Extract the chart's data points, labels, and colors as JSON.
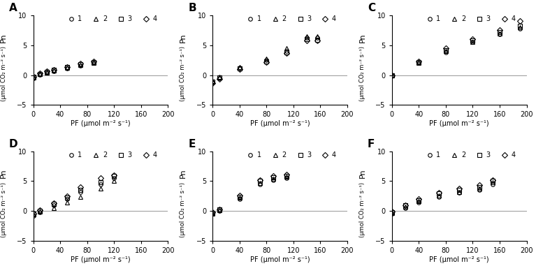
{
  "panels": [
    "A",
    "B",
    "C",
    "D",
    "E",
    "F"
  ],
  "marker_styles": [
    "o",
    "^",
    "s",
    "D"
  ],
  "legend_labels": [
    "1",
    "2",
    "3",
    "4"
  ],
  "marker_size": 4,
  "xlabel": "PF (μmol m⁻² s⁻¹)",
  "ylabel_top": "Pn",
  "ylabel_bottom": "(μmol CO₂ m⁻² s⁻¹)",
  "ylim": [
    -5,
    10
  ],
  "yticks": [
    -5,
    0,
    5,
    10
  ],
  "A": {
    "xlim": [
      0,
      200
    ],
    "xticks": [
      0,
      40,
      80,
      120,
      160,
      200
    ],
    "series": {
      "1": {
        "x": [
          0,
          10,
          20,
          30,
          50,
          70,
          90
        ],
        "y": [
          -0.5,
          0.1,
          0.4,
          0.7,
          1.1,
          1.6,
          2.0
        ]
      },
      "2": {
        "x": [
          0,
          10,
          20,
          30,
          50,
          70,
          90
        ],
        "y": [
          -0.4,
          0.15,
          0.45,
          0.75,
          1.2,
          1.7,
          2.1
        ]
      },
      "3": {
        "x": [
          0,
          10,
          20,
          30,
          50,
          70,
          90
        ],
        "y": [
          -0.3,
          0.2,
          0.55,
          0.85,
          1.35,
          1.85,
          2.2
        ]
      },
      "4": {
        "x": [
          0,
          10,
          20,
          30,
          50,
          70,
          90
        ],
        "y": [
          -0.25,
          0.25,
          0.6,
          0.9,
          1.4,
          1.9,
          2.25
        ]
      }
    }
  },
  "B": {
    "xlim": [
      0,
      200
    ],
    "xticks": [
      0,
      40,
      80,
      120,
      160,
      200
    ],
    "series": {
      "1": {
        "x": [
          0,
          10,
          40,
          80,
          110,
          140,
          155
        ],
        "y": [
          -1.2,
          -0.5,
          1.2,
          2.5,
          4.0,
          6.2,
          6.2
        ]
      },
      "2": {
        "x": [
          0,
          10,
          40,
          80,
          110,
          140,
          155
        ],
        "y": [
          -1.0,
          -0.3,
          1.4,
          2.8,
          4.5,
          6.5,
          6.5
        ]
      },
      "3": {
        "x": [
          0,
          10,
          40,
          80,
          110,
          140,
          155
        ],
        "y": [
          -1.1,
          -0.4,
          1.1,
          2.3,
          3.8,
          6.0,
          5.9
        ]
      },
      "4": {
        "x": [
          0,
          10,
          40,
          80,
          110,
          140,
          155
        ],
        "y": [
          -1.3,
          -0.6,
          1.0,
          2.2,
          3.7,
          5.8,
          5.8
        ]
      }
    }
  },
  "C": {
    "xlim": [
      0,
      200
    ],
    "xticks": [
      0,
      40,
      80,
      120,
      160,
      200
    ],
    "series": {
      "1": {
        "x": [
          0,
          40,
          80,
          120,
          160,
          190
        ],
        "y": [
          0.0,
          2.0,
          3.8,
          5.5,
          6.8,
          7.8
        ]
      },
      "2": {
        "x": [
          0,
          40,
          80,
          120,
          160,
          190
        ],
        "y": [
          0.0,
          2.1,
          4.0,
          5.6,
          6.9,
          8.0
        ]
      },
      "3": {
        "x": [
          0,
          40,
          80,
          120,
          160,
          190
        ],
        "y": [
          0.0,
          2.2,
          4.2,
          5.8,
          7.2,
          8.2
        ]
      },
      "4": {
        "x": [
          0,
          40,
          80,
          120,
          160,
          190
        ],
        "y": [
          0.0,
          2.3,
          4.5,
          6.0,
          7.5,
          9.0
        ]
      }
    }
  },
  "D": {
    "xlim": [
      0,
      200
    ],
    "xticks": [
      0,
      40,
      80,
      120,
      160,
      200
    ],
    "series": {
      "1": {
        "x": [
          0,
          10,
          30,
          50,
          70,
          100,
          120
        ],
        "y": [
          -0.8,
          -0.2,
          1.0,
          2.0,
          3.2,
          4.5,
          5.5
        ]
      },
      "2": {
        "x": [
          0,
          10,
          30,
          50,
          70,
          100,
          120
        ],
        "y": [
          -0.6,
          -0.1,
          0.5,
          1.4,
          2.4,
          3.8,
          5.0
        ]
      },
      "3": {
        "x": [
          0,
          10,
          30,
          50,
          70,
          100,
          120
        ],
        "y": [
          -0.5,
          0.0,
          1.2,
          2.2,
          3.5,
          4.8,
          5.8
        ]
      },
      "4": {
        "x": [
          0,
          10,
          30,
          50,
          70,
          100,
          120
        ],
        "y": [
          -0.4,
          0.1,
          1.3,
          2.5,
          4.0,
          5.5,
          6.0
        ]
      }
    }
  },
  "E": {
    "xlim": [
      0,
      200
    ],
    "xticks": [
      0,
      40,
      80,
      120,
      160,
      200
    ],
    "series": {
      "1": {
        "x": [
          0,
          10,
          40,
          70,
          90,
          110
        ],
        "y": [
          -0.5,
          0.0,
          2.0,
          4.5,
          5.2,
          5.5
        ]
      },
      "2": {
        "x": [
          0,
          10,
          40,
          70,
          90,
          110
        ],
        "y": [
          -0.4,
          0.1,
          2.2,
          4.7,
          5.4,
          5.7
        ]
      },
      "3": {
        "x": [
          0,
          10,
          40,
          70,
          90,
          110
        ],
        "y": [
          -0.3,
          0.2,
          2.4,
          5.0,
          5.6,
          5.9
        ]
      },
      "4": {
        "x": [
          0,
          10,
          40,
          70,
          90,
          110
        ],
        "y": [
          -0.2,
          0.3,
          2.6,
          5.2,
          5.8,
          6.1
        ]
      }
    }
  },
  "F": {
    "xlim": [
      0,
      200
    ],
    "xticks": [
      0,
      40,
      80,
      120,
      160,
      200
    ],
    "series": {
      "1": {
        "x": [
          0,
          20,
          40,
          70,
          100,
          130,
          150
        ],
        "y": [
          -0.5,
          0.5,
          1.4,
          2.4,
          3.0,
          3.5,
          4.5
        ]
      },
      "2": {
        "x": [
          0,
          20,
          40,
          70,
          100,
          130,
          150
        ],
        "y": [
          -0.3,
          0.7,
          1.6,
          2.6,
          3.2,
          3.8,
          4.8
        ]
      },
      "3": {
        "x": [
          0,
          20,
          40,
          70,
          100,
          130,
          150
        ],
        "y": [
          -0.2,
          0.9,
          1.8,
          2.9,
          3.5,
          4.0,
          5.0
        ]
      },
      "4": {
        "x": [
          0,
          20,
          40,
          70,
          100,
          130,
          150
        ],
        "y": [
          -0.1,
          1.0,
          2.0,
          3.1,
          3.8,
          4.3,
          5.2
        ]
      }
    }
  },
  "series_keys": [
    "1",
    "2",
    "3",
    "4"
  ]
}
